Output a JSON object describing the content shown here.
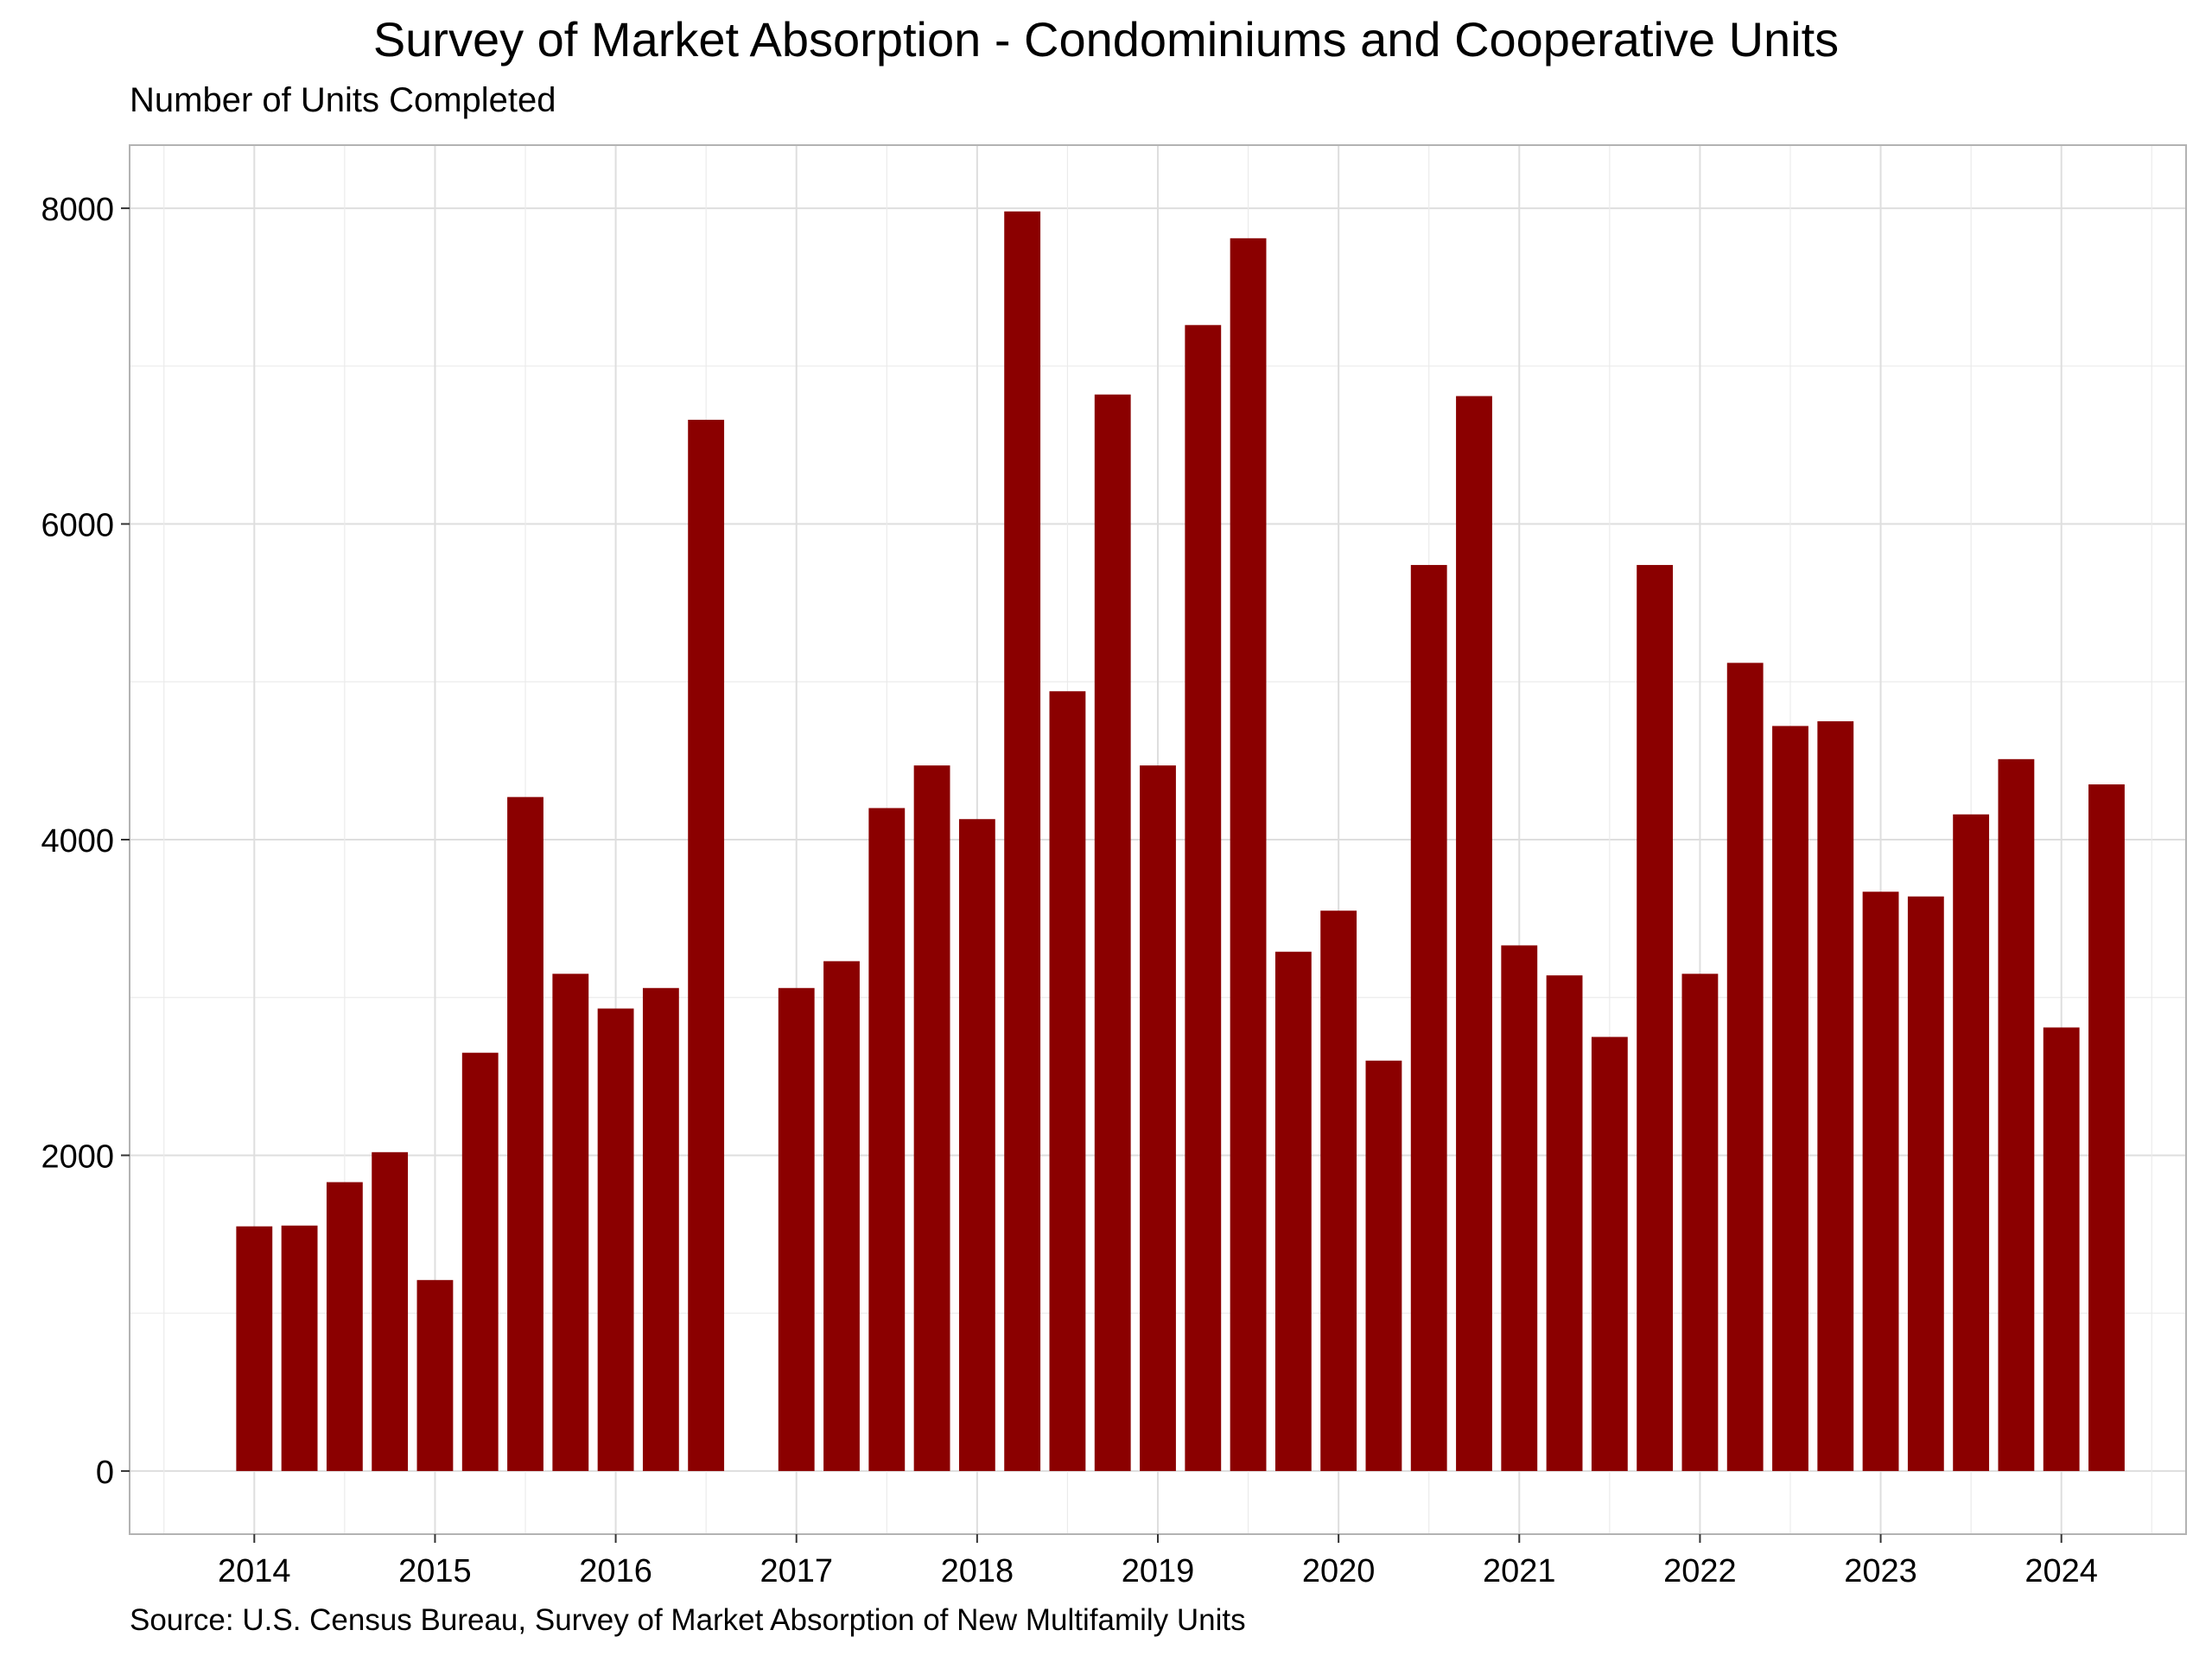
{
  "chart_data": {
    "type": "bar",
    "title": "Survey of Market Absorption - Condominiums and Cooperative Units",
    "subtitle": "Number of Units Completed",
    "caption": "Source: U.S. Census Bureau, Survey of Market Absorption of New Multifamily Units",
    "xlabel": "",
    "ylabel": "",
    "x_ticks": [
      "2014",
      "2015",
      "2016",
      "2017",
      "2018",
      "2019",
      "2020",
      "2021",
      "2022",
      "2023",
      "2024"
    ],
    "y_ticks": [
      "0",
      "2000",
      "4000",
      "6000",
      "8000"
    ],
    "ylim": [
      -400,
      8400
    ],
    "xlim": [
      2013.31,
      2024.69
    ],
    "grid": true,
    "bar_color": "#8B0000",
    "series": [
      {
        "x": [
          "2014-01",
          "2014-04",
          "2014-07",
          "2014-10",
          "2015-01",
          "2015-04",
          "2015-07",
          "2015-10",
          "2016-01",
          "2016-04",
          "2016-07",
          "2016-10",
          "2017-01",
          "2017-04",
          "2017-07",
          "2017-10",
          "2018-01",
          "2018-04",
          "2018-07",
          "2018-10",
          "2019-01",
          "2019-04",
          "2019-07",
          "2019-10",
          "2020-01",
          "2020-04",
          "2020-07",
          "2020-10",
          "2021-01",
          "2021-04",
          "2021-07",
          "2021-10",
          "2022-01",
          "2022-04",
          "2022-07",
          "2022-10",
          "2023-01",
          "2023-04",
          "2023-07",
          "2023-10",
          "2024-01",
          "2024-04"
        ],
        "values": [
          1550,
          1555,
          1830,
          2020,
          1210,
          2650,
          4270,
          3150,
          2930,
          3060,
          6660,
          0,
          3060,
          3230,
          4200,
          4470,
          4130,
          7980,
          4940,
          6820,
          4470,
          7260,
          7810,
          3290,
          3550,
          2600,
          5740,
          6810,
          3330,
          3140,
          2750,
          5740,
          3150,
          5120,
          4720,
          4750,
          3670,
          3640,
          4160,
          4510,
          2810,
          4350
        ]
      }
    ]
  }
}
